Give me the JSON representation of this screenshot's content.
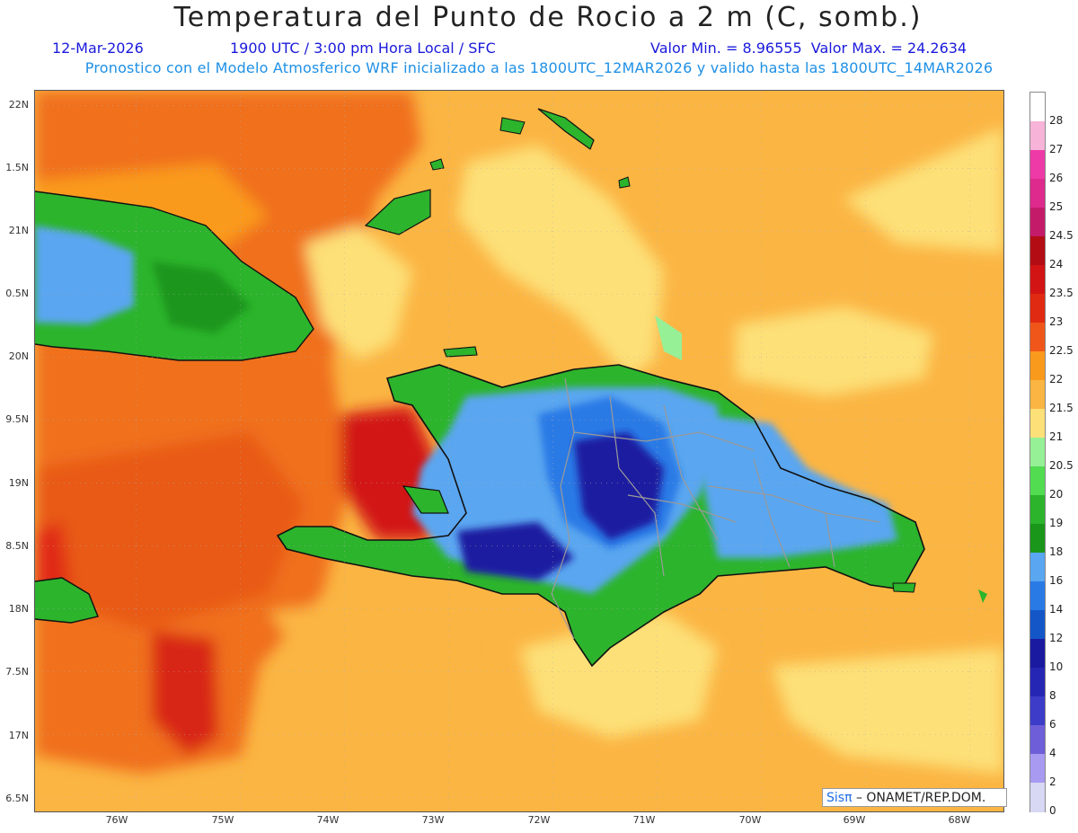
{
  "header": {
    "title": "Temperatura del Punto de Rocio a 2 m (C, somb.)",
    "date": "12-Mar-2026",
    "time": "1900 UTC / 3:00 pm Hora Local / SFC",
    "min_max": "Valor Min. = 8.96555  Valor Max. = 24.2634",
    "model_info": "Pronostico con el Modelo Atmosferico WRF inicializado a las 1800UTC_12MAR2026 y valido hasta las  1800UTC_14MAR2026"
  },
  "map": {
    "lat_labels": [
      "22N",
      "1.5N",
      "21N",
      "0.5N",
      "20N",
      "9.5N",
      "19N",
      "8.5N",
      "18N",
      "7.5N",
      "17N",
      "6.5N"
    ],
    "lon_labels": [
      "76W",
      "75W",
      "74W",
      "73W",
      "72W",
      "71W",
      "70W",
      "69W",
      "68W"
    ]
  },
  "colorbar": {
    "labels": [
      "28",
      "27",
      "26",
      "25",
      "24.5",
      "24",
      "23.5",
      "23",
      "22.5",
      "22",
      "21.5",
      "21",
      "20.5",
      "20",
      "19",
      "18",
      "16",
      "14",
      "12",
      "10",
      "8",
      "6",
      "4",
      "2",
      "0"
    ],
    "colors": [
      "#ffffff",
      "#f7b4d8",
      "#ee3aa6",
      "#de2a8c",
      "#c41a6a",
      "#b40c14",
      "#d21414",
      "#e02a12",
      "#f0561a",
      "#fa9a1c",
      "#fbb543",
      "#fde078",
      "#96f096",
      "#52dc52",
      "#2cb42c",
      "#1a961a",
      "#5aa6f0",
      "#2a7ae6",
      "#1456c8",
      "#1a1aa0",
      "#2626b4",
      "#3c3cc8",
      "#6e5ed8",
      "#a89af0",
      "#d8d8f4"
    ]
  },
  "credit": {
    "brand": "Sisπ",
    "text": "– ONAMET/REP.DOM."
  }
}
